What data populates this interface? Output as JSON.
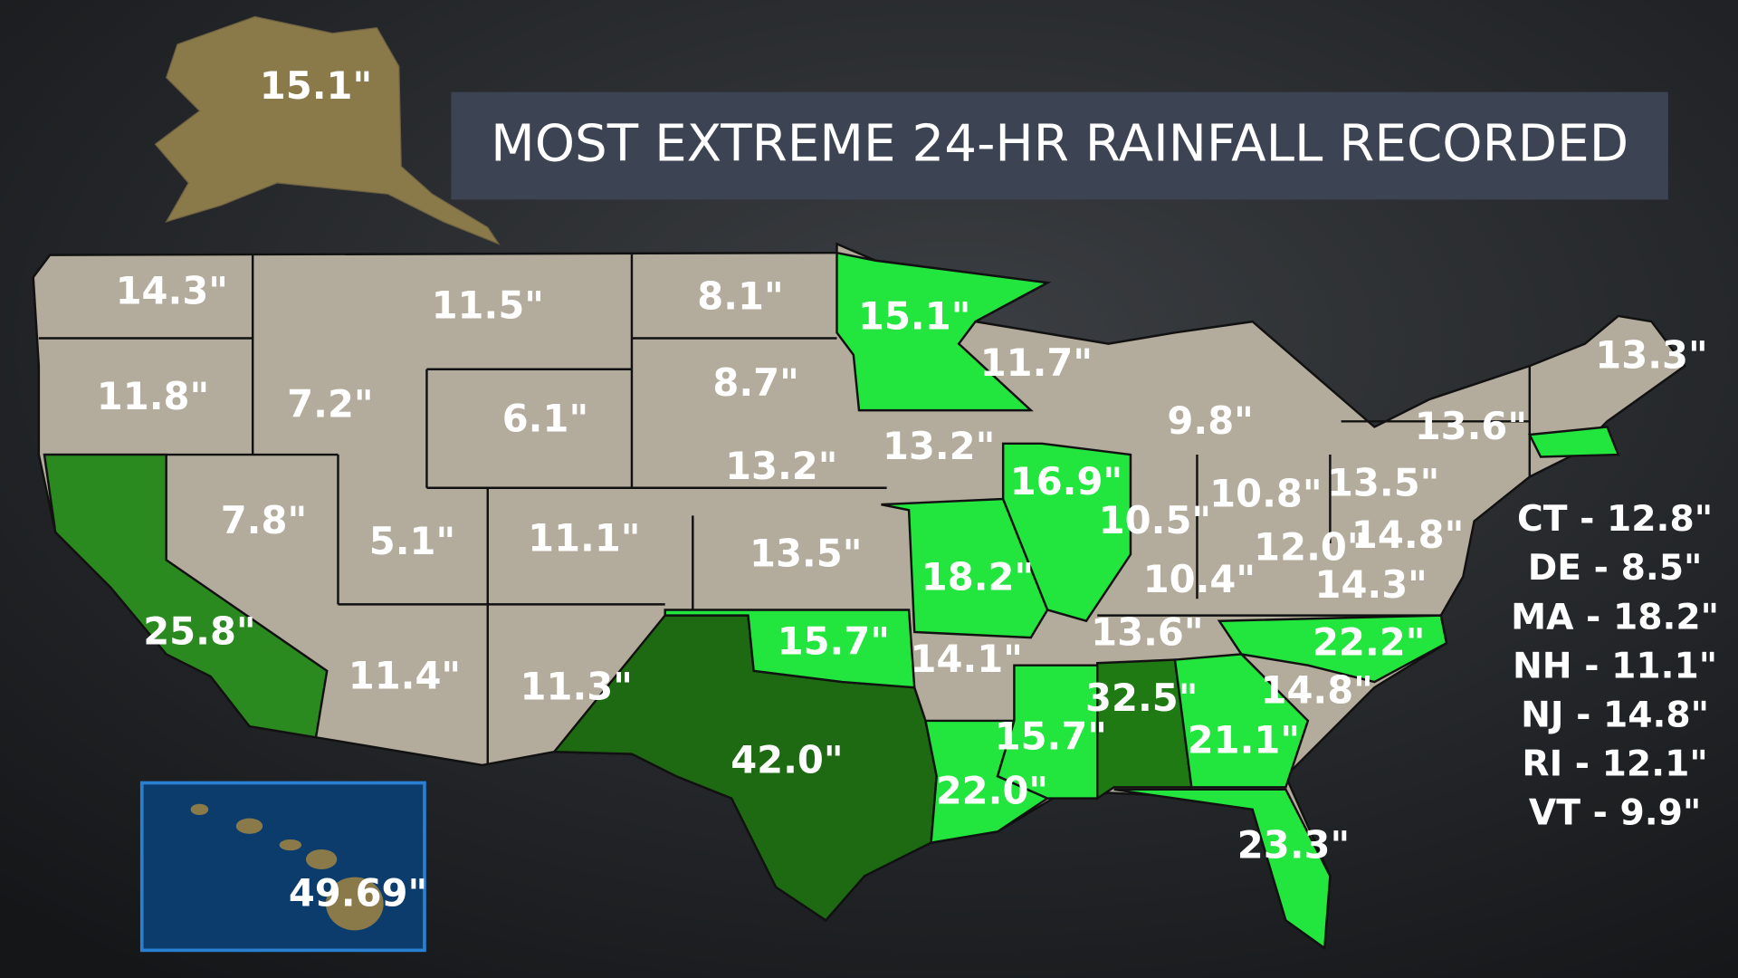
{
  "title": "MOST EXTREME 24-HR RAINFALL RECORDED",
  "alaska": "15.1\"",
  "hawaii": "49.69\"",
  "state_labels": [
    "14.3\"",
    "11.5\"",
    "8.1\"",
    "15.1\"",
    "11.8\"",
    "7.2\"",
    "6.1\"",
    "8.7\"",
    "11.7\"",
    "13.3\"",
    "9.8\"",
    "13.6\"",
    "13.2\"",
    "13.2\"",
    "16.9\"",
    "13.5\"",
    "10.8\"",
    "7.8\"",
    "10.5\"",
    "5.1\"",
    "11.1\"",
    "12.0\"",
    "14.8\"",
    "13.5\"",
    "18.2\"",
    "10.4\"",
    "14.3\"",
    "25.8\"",
    "15.7\"",
    "13.6\"",
    "22.2\"",
    "14.1\"",
    "11.4\"",
    "11.3\"",
    "14.8\"",
    "32.5\"",
    "15.7\"",
    "21.1\"",
    "42.0\"",
    "22.0\"",
    "23.3\""
  ],
  "side_list": [
    "CT - 12.8\"",
    "DE - 8.5\"",
    "MA - 18.2\"",
    "NH - 11.1\"",
    "NJ - 14.8\"",
    "RI - 12.1\"",
    "VT - 9.9\""
  ]
}
